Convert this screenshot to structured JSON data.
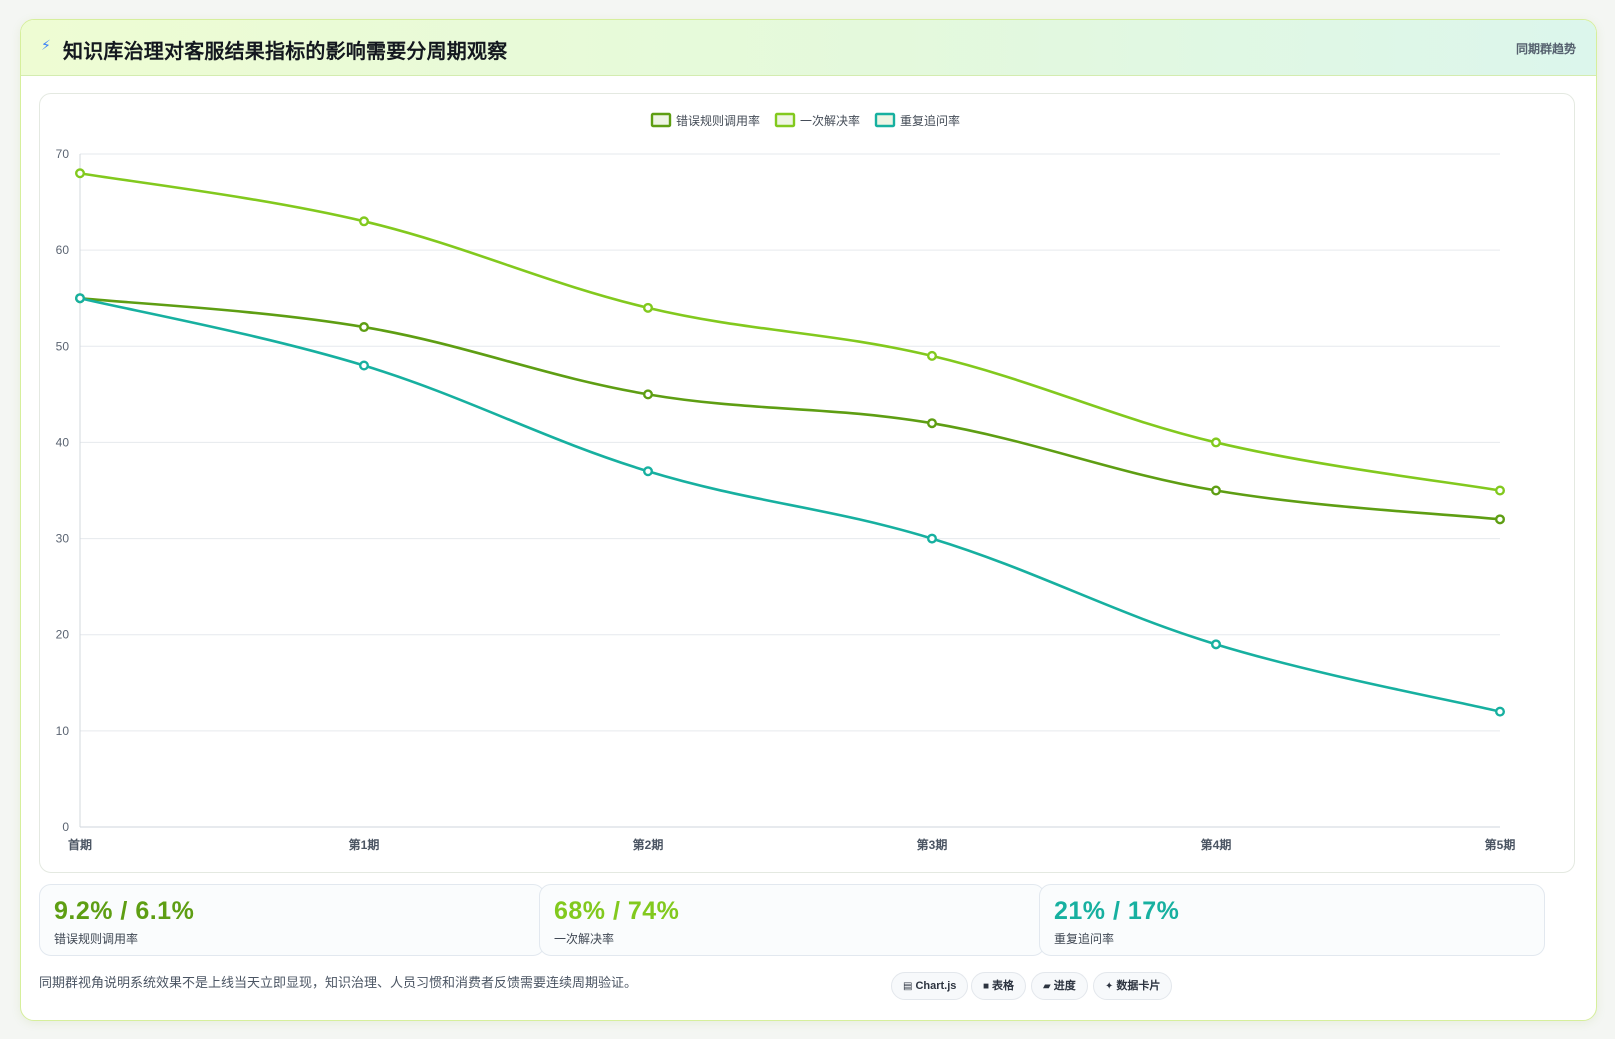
{
  "header": {
    "icon": "lightning-icon",
    "title": "知识库治理对客服结果指标的影响需要分周期观察",
    "tag": "同期群趋势"
  },
  "chart_data": {
    "type": "line",
    "x": [
      "首期",
      "第1期",
      "第2期",
      "第3期",
      "第4期",
      "第5期"
    ],
    "ylim": [
      0,
      70
    ],
    "yticks": [
      0,
      10,
      20,
      30,
      40,
      50,
      60,
      70
    ],
    "grid": true,
    "legend_position": "top-center",
    "series": [
      {
        "name": "错误规则调用率",
        "color": "#5e9e13",
        "values": [
          55,
          52,
          45,
          42,
          35,
          32
        ]
      },
      {
        "name": "一次解决率",
        "color": "#82c91e",
        "values": [
          68,
          63,
          54,
          49,
          40,
          35
        ]
      },
      {
        "name": "重复追问率",
        "color": "#17b0a0",
        "values": [
          55,
          48,
          37,
          30,
          19,
          12
        ]
      }
    ]
  },
  "metrics": [
    {
      "value": "9.2% / 6.1%",
      "label": "错误规则调用率",
      "color": "#5e9e13"
    },
    {
      "value": "68% / 74%",
      "label": "一次解决率",
      "color": "#82c91e"
    },
    {
      "value": "21% / 17%",
      "label": "重复追问率",
      "color": "#17b0a0"
    }
  ],
  "footer": {
    "note": "同期群视角说明系统效果不是上线当天立即显现，知识治理、人员习惯和消费者反馈需要连续周期验证。",
    "badges": [
      {
        "icon": "chart-icon",
        "glyph": "▤",
        "label": "Chart.js"
      },
      {
        "icon": "table-icon",
        "glyph": "■",
        "label": "表格"
      },
      {
        "icon": "progress-icon",
        "glyph": "▰",
        "label": "进度"
      },
      {
        "icon": "sparkle-icon",
        "glyph": "✦",
        "label": "数据卡片"
      }
    ]
  }
}
